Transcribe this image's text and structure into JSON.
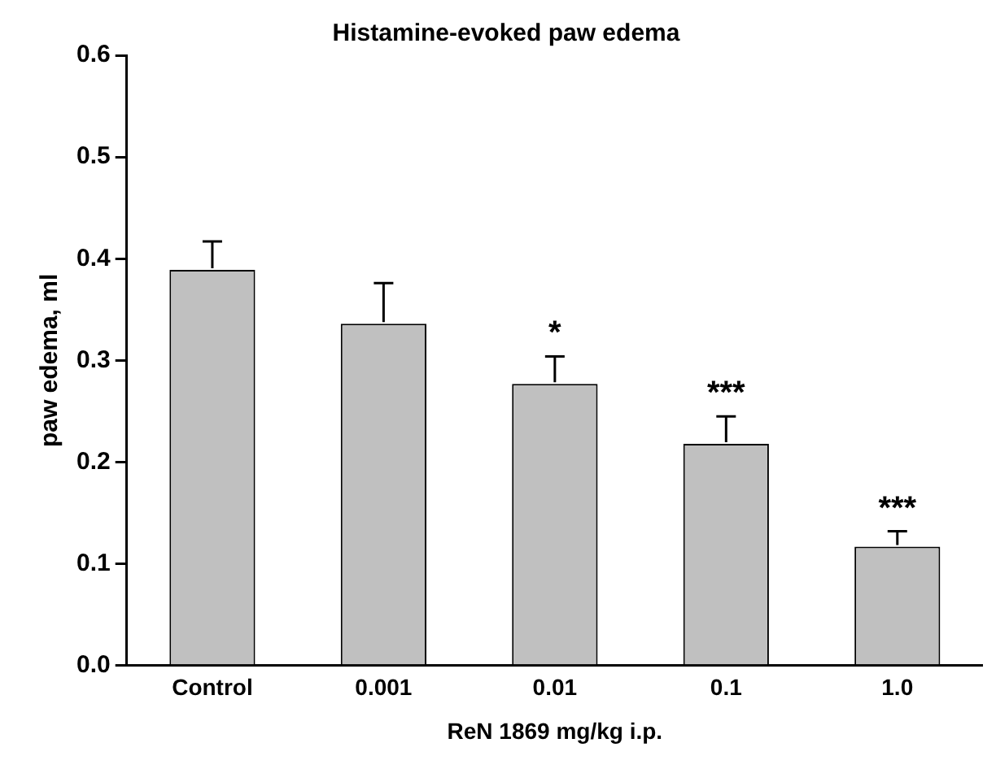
{
  "chart_data": {
    "type": "bar",
    "title": "Histamine-evoked paw edema",
    "xlabel": "ReN 1869 mg/kg i.p.",
    "ylabel": "paw edema, ml",
    "categories": [
      "Control",
      "0.001",
      "0.01",
      "0.1",
      "1.0"
    ],
    "values": [
      0.389,
      0.336,
      0.277,
      0.218,
      0.117
    ],
    "errors": [
      [
        0.389,
        0.417
      ],
      [
        0.336,
        0.376
      ],
      [
        0.277,
        0.304
      ],
      [
        0.218,
        0.245
      ],
      [
        0.117,
        0.132
      ]
    ],
    "color": "#c0c0c0",
    "ylim": [
      0,
      0.6
    ],
    "yticks": [
      {
        "value": 0,
        "label": "0.0"
      },
      0.1,
      0.2,
      0.3,
      0.4,
      0.5,
      0.6
    ],
    "grid": false,
    "legend": false,
    "annotations": [
      "*",
      "***",
      "***"
    ]
  }
}
